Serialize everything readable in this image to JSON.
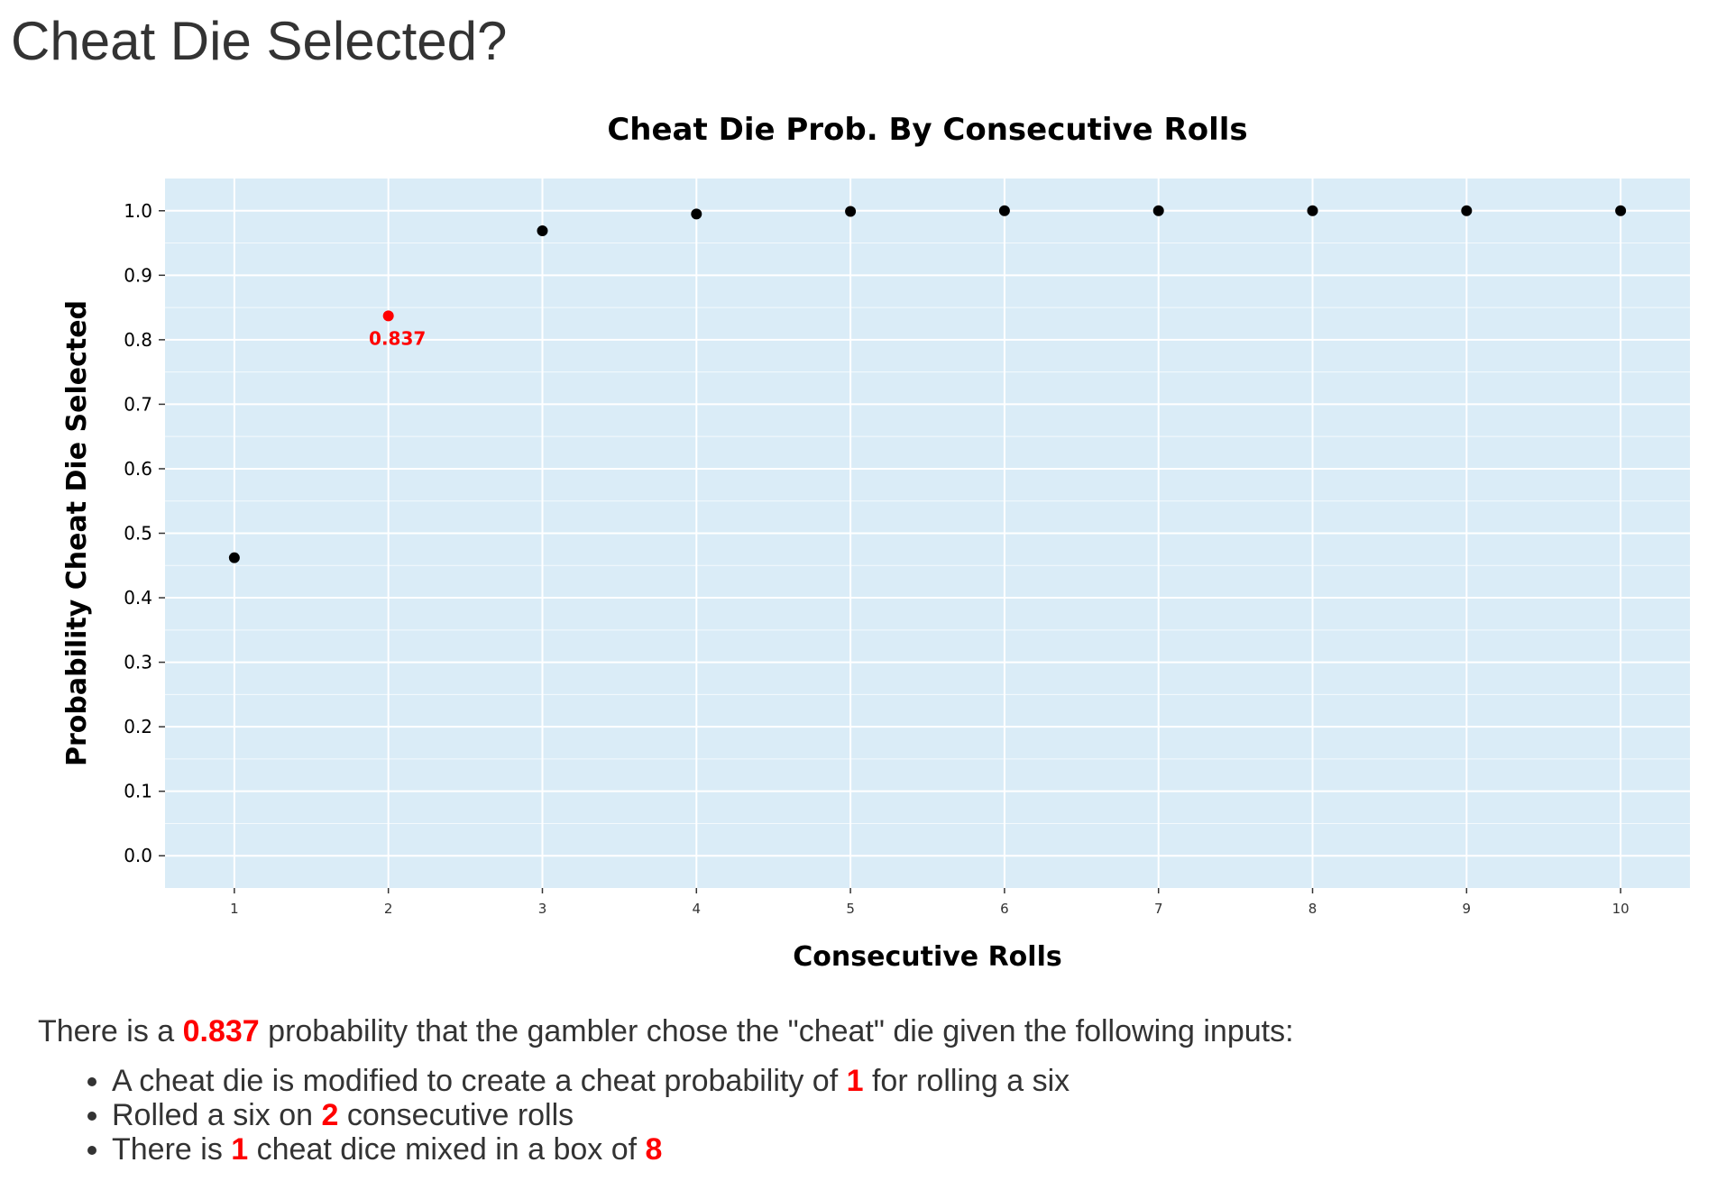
{
  "page": {
    "title": "Cheat Die Selected?"
  },
  "chart_data": {
    "type": "scatter",
    "title": "Cheat Die Prob. By Consecutive Rolls",
    "xlabel": "Consecutive Rolls",
    "ylabel": "Probability Cheat Die Selected",
    "x": [
      1,
      2,
      3,
      4,
      5,
      6,
      7,
      8,
      9,
      10
    ],
    "y": [
      0.462,
      0.837,
      0.969,
      0.995,
      0.999,
      1.0,
      1.0,
      1.0,
      1.0,
      1.0
    ],
    "xlim": [
      0.55,
      10.45
    ],
    "ylim": [
      -0.05,
      1.05
    ],
    "xticks": [
      "1",
      "2",
      "3",
      "4",
      "5",
      "6",
      "7",
      "8",
      "9",
      "10"
    ],
    "yticks": [
      "0.0",
      "0.1",
      "0.2",
      "0.3",
      "0.4",
      "0.5",
      "0.6",
      "0.7",
      "0.8",
      "0.9",
      "1.0"
    ],
    "grid": true,
    "highlight": {
      "x": 2,
      "y": 0.837,
      "label": "0.837",
      "color": "#ff0000"
    },
    "colors": {
      "background": "#daecf7",
      "grid": "#ffffff",
      "point": "#000000",
      "highlight": "#ff0000"
    }
  },
  "summary": {
    "prefix": "There is a ",
    "probability": "0.837",
    "suffix": " probability that the gambler chose the \"cheat\" die given the following inputs:",
    "bullets": [
      {
        "before": "A cheat die is modified to create a cheat probability of ",
        "value": "1",
        "after": " for rolling a six"
      },
      {
        "before": "Rolled a six on ",
        "value": "2",
        "after": " consecutive rolls"
      },
      {
        "before": "There is ",
        "value": "1",
        "middle": " cheat dice mixed in a box of ",
        "value2": "8"
      }
    ]
  }
}
